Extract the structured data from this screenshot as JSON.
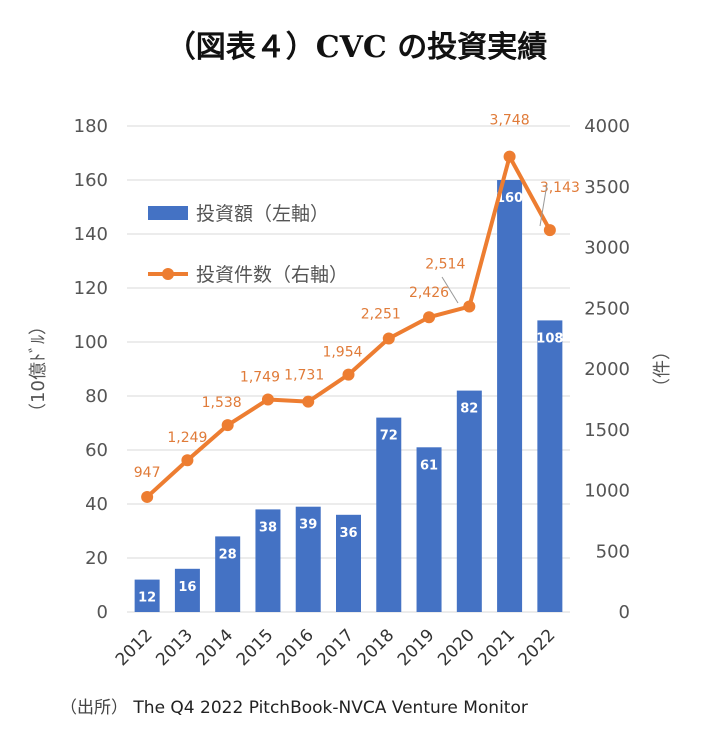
{
  "title": "（図表４）CVC の投資実績",
  "source": {
    "prefix": "（出所）",
    "text": "The Q4 2022 PitchBook-NVCA Venture Monitor"
  },
  "colors": {
    "bar": "#4472C4",
    "line": "#ED7D31",
    "line_label": "#E07B39",
    "grid": "#D9D9D9"
  },
  "chart_data": {
    "type": "bar",
    "categories": [
      "2012",
      "2013",
      "2014",
      "2015",
      "2016",
      "2017",
      "2018",
      "2019",
      "2020",
      "2021",
      "2022"
    ],
    "series": [
      {
        "name": "投資額（左軸）",
        "type": "bar",
        "axis": "left",
        "values": [
          12,
          16,
          28,
          38,
          39,
          36,
          72,
          61,
          82,
          160,
          108
        ],
        "labels": [
          "12",
          "16",
          "28",
          "38",
          "39",
          "36",
          "72",
          "61",
          "82",
          "160",
          "108"
        ]
      },
      {
        "name": "投資件数（右軸）",
        "type": "line",
        "axis": "right",
        "values": [
          947,
          1249,
          1538,
          1749,
          1731,
          1954,
          2251,
          2426,
          2514,
          3748,
          3143
        ],
        "labels": [
          "947",
          "1,249",
          "1,538",
          "1,749",
          "1,731",
          "1,954",
          "2,251",
          "2,426",
          "2,514",
          "3,748",
          "3,143"
        ]
      }
    ],
    "y_left": {
      "label": "（10億ﾄﾞﾙ）",
      "ylim": [
        0,
        180
      ],
      "ticks": [
        "0",
        "20",
        "40",
        "60",
        "80",
        "100",
        "120",
        "140",
        "160",
        "180"
      ]
    },
    "y_right": {
      "label": "（件）",
      "ylim": [
        0,
        4000
      ],
      "ticks": [
        "0",
        "500",
        "1000",
        "1500",
        "2000",
        "2500",
        "3000",
        "3500",
        "4000"
      ]
    },
    "grid": true,
    "legend": "top-left"
  }
}
